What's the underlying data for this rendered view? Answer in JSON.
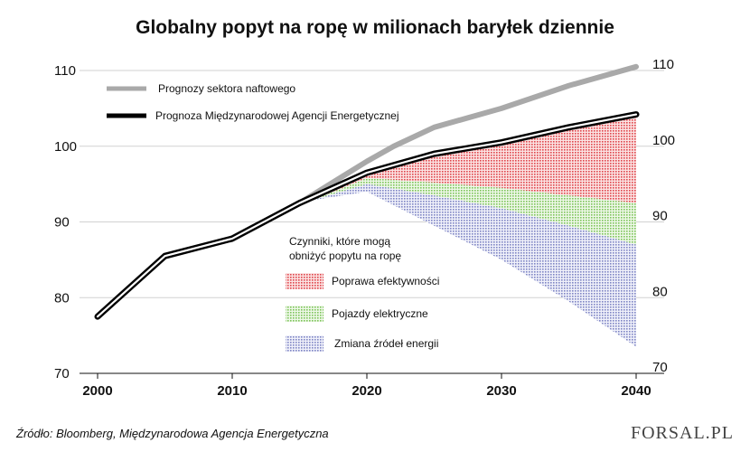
{
  "chart_data": {
    "type": "line",
    "title": "Globalny popyt na ropę w milionach baryłek dziennie",
    "x_ticks": [
      "2000",
      "2010",
      "2020",
      "2030",
      "2040"
    ],
    "y_ticks_left": [
      "110",
      "100",
      "90",
      "80",
      "70"
    ],
    "y_ticks_right": [
      "110",
      "100",
      "90",
      "80",
      "70"
    ],
    "ylim": [
      70,
      110
    ],
    "xlim": [
      2000,
      2040
    ],
    "series": [
      {
        "name": "Prognozy sektora naftowego",
        "color": "#a9a9a9",
        "points": [
          [
            2000,
            77.5
          ],
          [
            2005,
            85.5
          ],
          [
            2010,
            87.8
          ],
          [
            2015,
            92.5
          ],
          [
            2020,
            98
          ],
          [
            2022,
            100
          ],
          [
            2025,
            102.5
          ],
          [
            2030,
            105
          ],
          [
            2035,
            108
          ],
          [
            2040,
            110.5
          ]
        ]
      },
      {
        "name": "Prognoza Międzynarodowej Agencji Energetycznej",
        "color": "#000000",
        "points": [
          [
            2000,
            77.5
          ],
          [
            2005,
            85.5
          ],
          [
            2010,
            87.8
          ],
          [
            2015,
            92.5
          ],
          [
            2020,
            96.5
          ],
          [
            2025,
            99
          ],
          [
            2030,
            100.5
          ],
          [
            2035,
            102.5
          ],
          [
            2040,
            104.2
          ]
        ]
      }
    ],
    "factors": {
      "title": "Czynniki, które mogą obniżyć popytu na ropę",
      "items": [
        {
          "label": "Poprawa efektywności",
          "color": "#e0464b",
          "upper": [
            [
              2016,
              92.9
            ],
            [
              2020,
              96.5
            ],
            [
              2025,
              99
            ],
            [
              2030,
              100.5
            ],
            [
              2035,
              102.5
            ],
            [
              2040,
              104.2
            ]
          ],
          "lower": [
            [
              2016,
              92.9
            ],
            [
              2020,
              95.8
            ],
            [
              2025,
              95.2
            ],
            [
              2030,
              94.5
            ],
            [
              2035,
              93.5
            ],
            [
              2040,
              92.5
            ]
          ]
        },
        {
          "label": "Pojazdy elektryczne",
          "color": "#7cc45a",
          "upper": [
            [
              2016,
              92.9
            ],
            [
              2020,
              95.8
            ],
            [
              2025,
              95.2
            ],
            [
              2030,
              94.5
            ],
            [
              2035,
              93.5
            ],
            [
              2040,
              92.5
            ]
          ],
          "lower": [
            [
              2016,
              92.9
            ],
            [
              2020,
              95
            ],
            [
              2025,
              93.5
            ],
            [
              2030,
              91.8
            ],
            [
              2035,
              89.5
            ],
            [
              2040,
              87
            ]
          ]
        },
        {
          "label": "Zmiana źródeł energii",
          "color": "#7e85c4",
          "upper": [
            [
              2016,
              92.9
            ],
            [
              2020,
              95
            ],
            [
              2025,
              93.5
            ],
            [
              2030,
              91.8
            ],
            [
              2035,
              89.5
            ],
            [
              2040,
              87
            ]
          ],
          "lower": [
            [
              2016,
              92.9
            ],
            [
              2020,
              94
            ],
            [
              2025,
              89.5
            ],
            [
              2030,
              85
            ],
            [
              2035,
              79.5
            ],
            [
              2040,
              73.5
            ]
          ]
        }
      ]
    }
  },
  "footer": {
    "source": "Źródło:  Bloomberg, Międzynarodowa Agencja Energetyczna",
    "brand": "FORSAL.PL"
  }
}
